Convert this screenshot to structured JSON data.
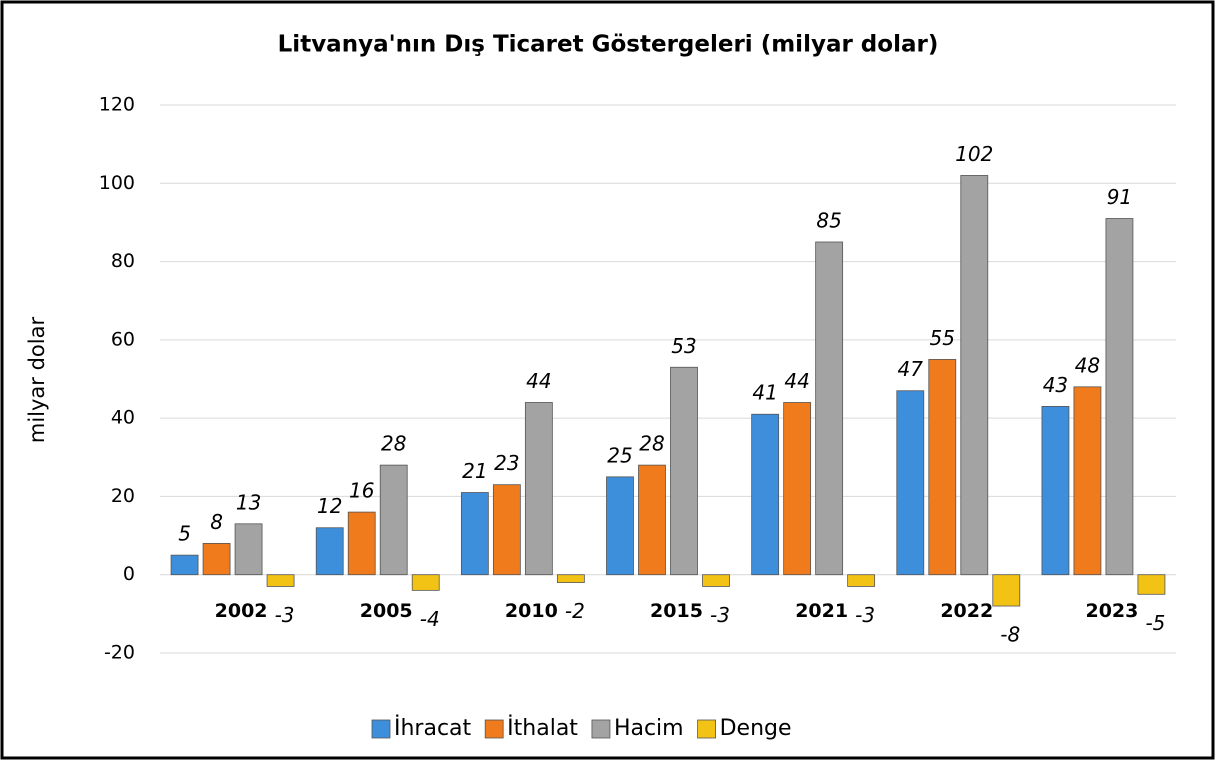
{
  "chart_data": {
    "type": "bar",
    "title": "Litvanya'nın Dış Ticaret Göstergeleri  (milyar dolar)",
    "y_label": "milyar dolar",
    "categories": [
      "2002",
      "2005",
      "2010",
      "2015",
      "2021",
      "2022",
      "2023"
    ],
    "series": [
      {
        "name": "İhracat",
        "color": "#3d8fdc",
        "values": [
          5,
          12,
          21,
          25,
          41,
          47,
          43
        ]
      },
      {
        "name": "İthalat",
        "color": "#f07b1c",
        "values": [
          8,
          16,
          23,
          28,
          44,
          55,
          48
        ]
      },
      {
        "name": "Hacim",
        "color": "#a3a3a3",
        "values": [
          13,
          28,
          44,
          53,
          85,
          102,
          91
        ]
      },
      {
        "name": "Denge",
        "color": "#f2c314",
        "values": [
          -3,
          -4,
          -2,
          -3,
          -3,
          -8,
          -5
        ]
      }
    ],
    "ylim": [
      -20,
      120
    ],
    "yticks": [
      -20,
      0,
      20,
      40,
      60,
      80,
      100,
      120
    ],
    "grid": true,
    "legend": "bottom"
  }
}
